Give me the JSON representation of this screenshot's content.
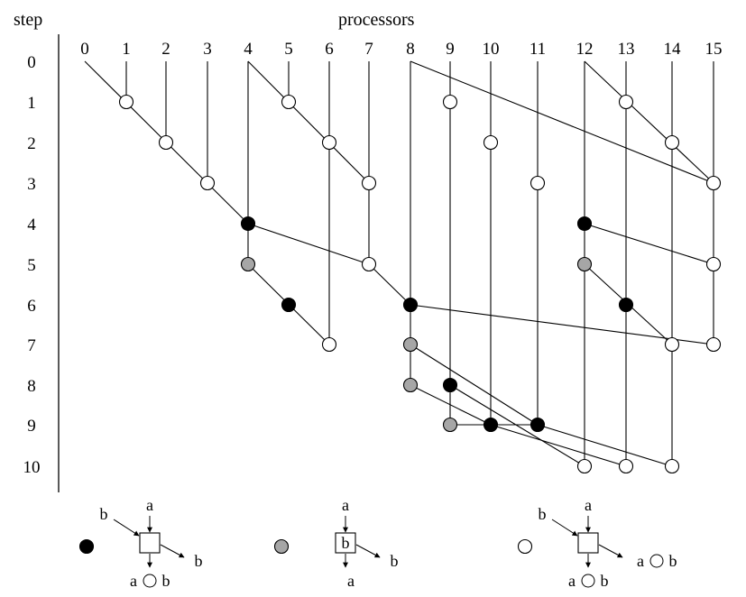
{
  "header": {
    "step_label": "step",
    "processors_label": "processors"
  },
  "processors": [
    "0",
    "1",
    "2",
    "3",
    "4",
    "5",
    "6",
    "7",
    "8",
    "9",
    "10",
    "11",
    "12",
    "13",
    "14",
    "15"
  ],
  "steps": [
    "0",
    "1",
    "2",
    "3",
    "4",
    "5",
    "6",
    "7",
    "8",
    "9",
    "10"
  ],
  "node_colors": {
    "black": "#000000",
    "gray": "#a6a6a6",
    "white": "#ffffff"
  },
  "vertical_lines": [
    {
      "proc": 1,
      "from": 0,
      "to": 1
    },
    {
      "proc": 2,
      "from": 0,
      "to": 2
    },
    {
      "proc": 3,
      "from": 0,
      "to": 3
    },
    {
      "proc": 4,
      "from": 0,
      "to": 5
    },
    {
      "proc": 5,
      "from": 0,
      "to": 1
    },
    {
      "proc": 6,
      "from": 0,
      "to": 7
    },
    {
      "proc": 7,
      "from": 0,
      "to": 5
    },
    {
      "proc": 8,
      "from": 0,
      "to": 8
    },
    {
      "proc": 9,
      "from": 0,
      "to": 9
    },
    {
      "proc": 10,
      "from": 0,
      "to": 9
    },
    {
      "proc": 11,
      "from": 0,
      "to": 9
    },
    {
      "proc": 12,
      "from": 0,
      "to": 10
    },
    {
      "proc": 13,
      "from": 0,
      "to": 10
    },
    {
      "proc": 14,
      "from": 0,
      "to": 10
    },
    {
      "proc": 15,
      "from": 0,
      "to": 7
    }
  ],
  "edges": [
    [
      [
        0,
        0
      ],
      [
        4,
        4
      ]
    ],
    [
      [
        4,
        0
      ],
      [
        7,
        3
      ]
    ],
    [
      [
        8,
        0
      ],
      [
        15,
        3
      ]
    ],
    [
      [
        12,
        0
      ],
      [
        15,
        3
      ]
    ],
    [
      [
        4,
        4
      ],
      [
        7,
        5
      ]
    ],
    [
      [
        12,
        4
      ],
      [
        15,
        5
      ]
    ],
    [
      [
        4,
        5
      ],
      [
        6,
        7
      ]
    ],
    [
      [
        7,
        5
      ],
      [
        8,
        6
      ]
    ],
    [
      [
        8,
        6
      ],
      [
        15,
        7
      ]
    ],
    [
      [
        12,
        5
      ],
      [
        14,
        7
      ]
    ],
    [
      [
        8,
        7
      ],
      [
        11,
        9
      ]
    ],
    [
      [
        8,
        8
      ],
      [
        10,
        9
      ]
    ],
    [
      [
        9,
        8
      ],
      [
        12,
        10
      ]
    ],
    [
      [
        9,
        9
      ],
      [
        11,
        9
      ]
    ],
    [
      [
        10,
        9
      ],
      [
        13,
        10
      ]
    ],
    [
      [
        11,
        9
      ],
      [
        14,
        10
      ]
    ]
  ],
  "nodes": [
    {
      "proc": 1,
      "step": 1,
      "type": "white"
    },
    {
      "proc": 5,
      "step": 1,
      "type": "white"
    },
    {
      "proc": 9,
      "step": 1,
      "type": "white"
    },
    {
      "proc": 13,
      "step": 1,
      "type": "white"
    },
    {
      "proc": 2,
      "step": 2,
      "type": "white"
    },
    {
      "proc": 6,
      "step": 2,
      "type": "white"
    },
    {
      "proc": 10,
      "step": 2,
      "type": "white"
    },
    {
      "proc": 14,
      "step": 2,
      "type": "white"
    },
    {
      "proc": 3,
      "step": 3,
      "type": "white"
    },
    {
      "proc": 7,
      "step": 3,
      "type": "white"
    },
    {
      "proc": 11,
      "step": 3,
      "type": "white"
    },
    {
      "proc": 15,
      "step": 3,
      "type": "white"
    },
    {
      "proc": 4,
      "step": 4,
      "type": "black"
    },
    {
      "proc": 12,
      "step": 4,
      "type": "black"
    },
    {
      "proc": 4,
      "step": 5,
      "type": "gray"
    },
    {
      "proc": 7,
      "step": 5,
      "type": "white"
    },
    {
      "proc": 12,
      "step": 5,
      "type": "gray"
    },
    {
      "proc": 15,
      "step": 5,
      "type": "white"
    },
    {
      "proc": 5,
      "step": 6,
      "type": "black"
    },
    {
      "proc": 8,
      "step": 6,
      "type": "black"
    },
    {
      "proc": 13,
      "step": 6,
      "type": "black"
    },
    {
      "proc": 6,
      "step": 7,
      "type": "white"
    },
    {
      "proc": 8,
      "step": 7,
      "type": "gray"
    },
    {
      "proc": 14,
      "step": 7,
      "type": "white"
    },
    {
      "proc": 15,
      "step": 7,
      "type": "white"
    },
    {
      "proc": 8,
      "step": 8,
      "type": "gray"
    },
    {
      "proc": 9,
      "step": 8,
      "type": "black"
    },
    {
      "proc": 9,
      "step": 9,
      "type": "gray"
    },
    {
      "proc": 10,
      "step": 9,
      "type": "black"
    },
    {
      "proc": 11,
      "step": 9,
      "type": "black"
    },
    {
      "proc": 12,
      "step": 10,
      "type": "white"
    },
    {
      "proc": 13,
      "step": 10,
      "type": "white"
    },
    {
      "proc": 14,
      "step": 10,
      "type": "white"
    }
  ],
  "legend": [
    {
      "type": "black",
      "in_top": "a",
      "in_left": "b",
      "box_text": "",
      "out_right": "b",
      "out_bottom_a": "a",
      "out_bottom_b": "b"
    },
    {
      "type": "gray",
      "in_top": "a",
      "in_left": "",
      "box_text": "b",
      "out_right": "b",
      "out_bottom_a": "a",
      "out_bottom_b": ""
    },
    {
      "type": "white",
      "in_top": "a",
      "in_left": "b",
      "box_text": "",
      "out_right": "a ○ b",
      "out_bottom_a": "a",
      "out_bottom_b": "b"
    }
  ]
}
